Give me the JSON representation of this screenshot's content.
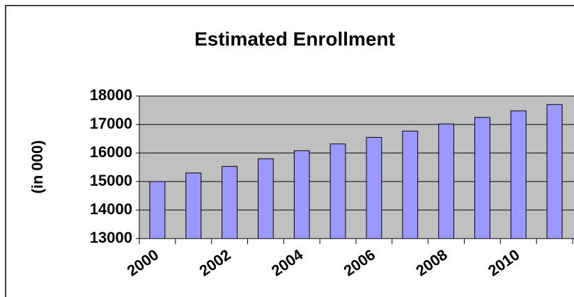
{
  "chart_data": {
    "type": "bar",
    "title": "Estimated Enrollment",
    "y_label": "(in 000)",
    "categories": [
      "2000",
      null,
      "2002",
      null,
      "2004",
      null,
      "2006",
      null,
      "2008",
      null,
      "2010",
      null
    ],
    "values": [
      15000,
      15300,
      15530,
      15800,
      16080,
      16320,
      16550,
      16770,
      17020,
      17250,
      17480,
      17700
    ],
    "color": "#9999ff",
    "plot_background": "#c0c0c0",
    "ylim": [
      13000,
      18000
    ],
    "yticks": [
      13000,
      14000,
      15000,
      16000,
      17000,
      18000
    ],
    "grid": true
  }
}
